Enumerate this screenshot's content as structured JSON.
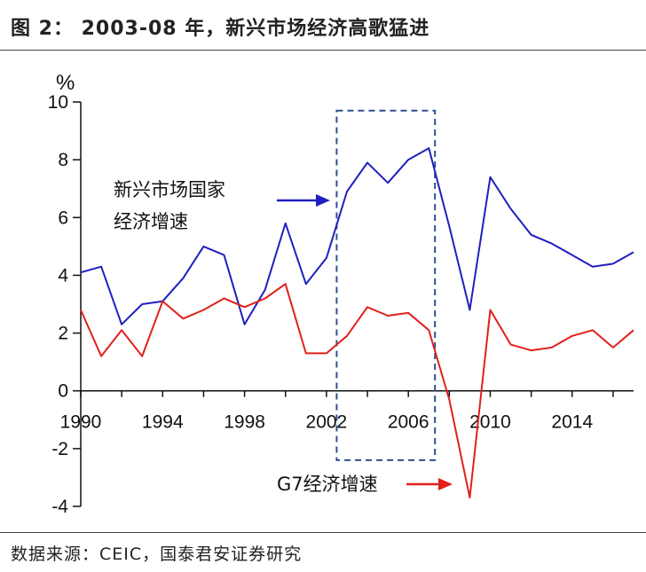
{
  "header": {
    "title": "图 2： 2003-08 年，新兴市场经济高歌猛进"
  },
  "footer": {
    "source": "数据来源：CEIC，国泰君安证券研究"
  },
  "chart_data": {
    "type": "line",
    "ylabel": "%",
    "ylim": [
      -4,
      10
    ],
    "yticks": [
      10,
      8,
      6,
      4,
      2,
      0,
      -2,
      -4
    ],
    "xlim": [
      1990,
      2017
    ],
    "xticks": [
      1990,
      1994,
      1998,
      2002,
      2006,
      2010,
      2014
    ],
    "x": [
      1990,
      1991,
      1992,
      1993,
      1994,
      1995,
      1996,
      1997,
      1998,
      1999,
      2000,
      2001,
      2002,
      2003,
      2004,
      2005,
      2006,
      2007,
      2008,
      2009,
      2010,
      2011,
      2012,
      2013,
      2014,
      2015,
      2016,
      2017
    ],
    "series": [
      {
        "name": "新兴市场国家经济增速",
        "color": "#1f1fbf",
        "values": [
          4.1,
          4.3,
          2.3,
          3.0,
          3.1,
          3.9,
          5.0,
          4.7,
          2.3,
          3.5,
          5.8,
          3.7,
          4.6,
          6.9,
          7.9,
          7.2,
          8.0,
          8.4,
          5.7,
          2.8,
          7.4,
          6.3,
          5.4,
          5.1,
          4.7,
          4.3,
          4.4,
          4.8
        ]
      },
      {
        "name": "G7经济增速",
        "color": "#e0201a",
        "values": [
          2.8,
          1.2,
          2.1,
          1.2,
          3.1,
          2.5,
          2.8,
          3.2,
          2.9,
          3.2,
          3.7,
          1.3,
          1.3,
          1.9,
          2.9,
          2.6,
          2.7,
          2.1,
          -0.3,
          -3.7,
          2.8,
          1.6,
          1.4,
          1.5,
          1.9,
          2.1,
          1.5,
          2.1
        ]
      }
    ],
    "annotations": [
      {
        "text_lines": [
          "新兴市场国家",
          "经济增速"
        ],
        "target_series": 0
      },
      {
        "text_lines": [
          "G7经济增速"
        ],
        "target_series": 1
      }
    ],
    "highlight_box": {
      "x_from": 2002.5,
      "x_to": 2007.3,
      "y_from": -2.4,
      "y_to": 9.7,
      "color": "#2f4f8f",
      "style": "dashed"
    }
  }
}
